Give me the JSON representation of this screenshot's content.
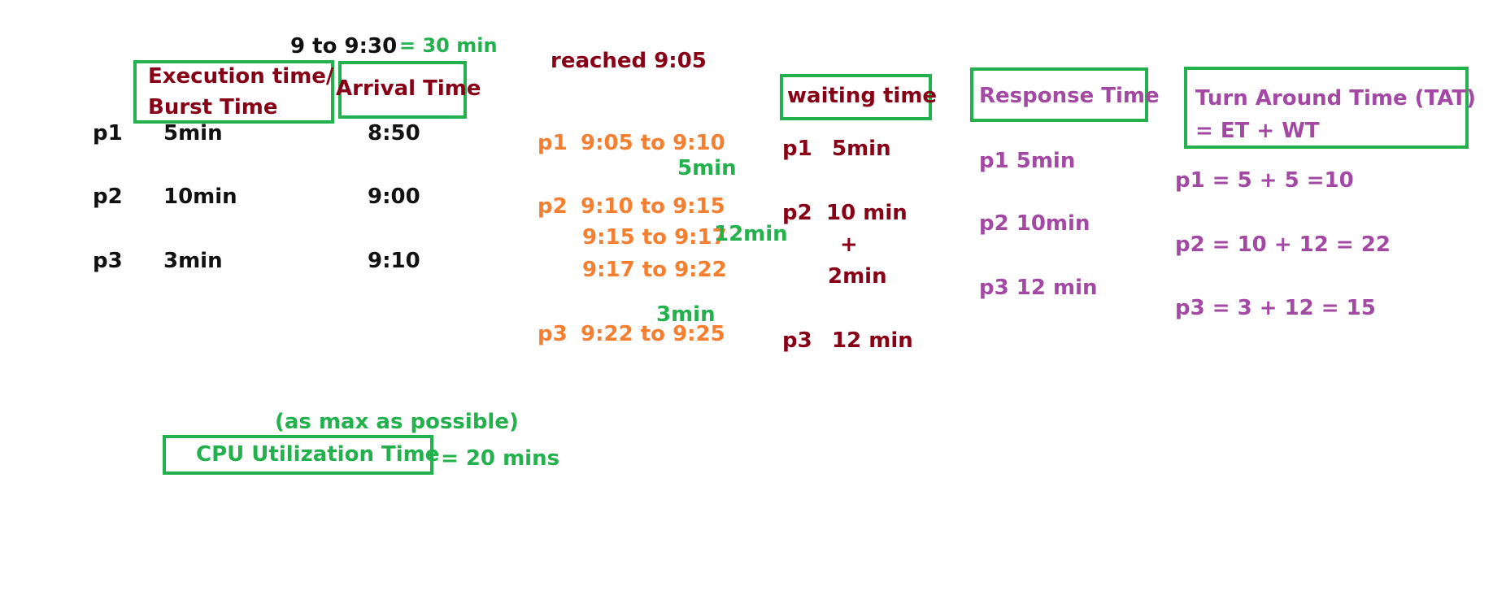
{
  "colors": {
    "black": "#111111",
    "dark_red": "#880015",
    "green": "#22b14c",
    "orange": "#f57f30",
    "purple": "#a349a4"
  },
  "header": {
    "window": "9 to 9:30",
    "window_total": "= 30 min",
    "reached": "reached 9:05"
  },
  "table": {
    "exec_header_line1": "Execution time/",
    "exec_header_line2": "Burst Time",
    "arrival_header": "Arrival Time",
    "rows": [
      {
        "process": "p1",
        "burst": "5min",
        "arrival": "8:50"
      },
      {
        "process": "p2",
        "burst": "10min",
        "arrival": "9:00"
      },
      {
        "process": "p3",
        "burst": "3min",
        "arrival": "9:10"
      }
    ]
  },
  "schedule": {
    "p1_label": "p1",
    "p1_range": "9:05 to 9:10",
    "p1_duration": "5min",
    "p2_label": "p2",
    "p2_range1": "9:10 to 9:15",
    "p2_range2": "9:15 to 9:17",
    "p2_range3": "9:17  to 9:22",
    "p2_duration": "12min",
    "p3_duration": "3min",
    "p3_label": "p3",
    "p3_range": "9:22 to 9:25"
  },
  "waiting": {
    "title": "waiting time",
    "p1_label": "p1",
    "p1_value": "5min",
    "p2_label": "p2",
    "p2_value": "10 min",
    "p2_plus": "+",
    "p2_extra": "2min",
    "p3_label": "p3",
    "p3_value": "12 min"
  },
  "response": {
    "title": "Response Time",
    "p1": "p1  5min",
    "p2": "p2  10min",
    "p3": "p3  12 min"
  },
  "tat": {
    "title_line1": "Turn Around Time (TAT)",
    "title_line2": "= ET + WT",
    "p1": "p1 = 5 + 5 =10",
    "p2": "p2 = 10 + 12 = 22",
    "p3": "p3 = 3 + 12 = 15"
  },
  "cpu": {
    "note": "(as max as possible)",
    "title": "CPU Utilization Time",
    "value": "= 20 mins"
  }
}
